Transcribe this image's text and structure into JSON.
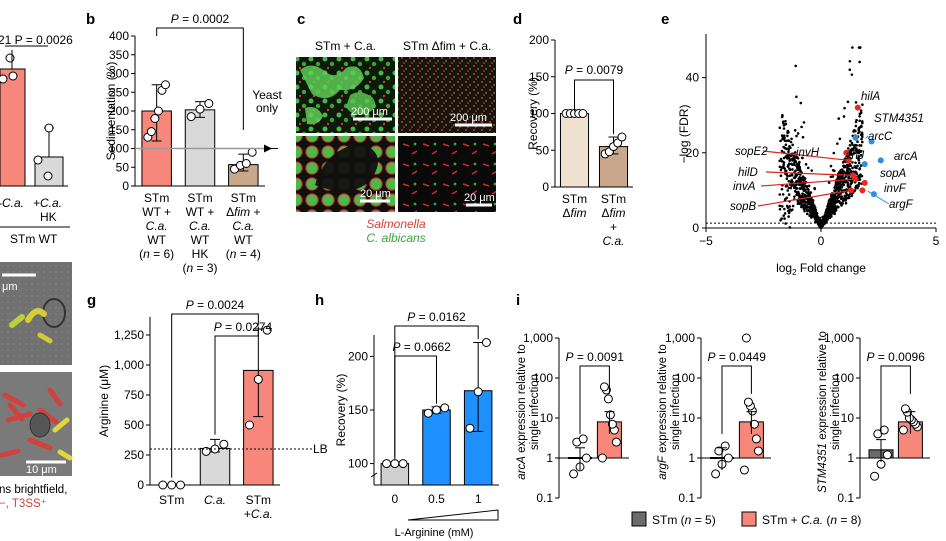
{
  "panels": [
    {
      "letter": "b"
    },
    {
      "letter": "c"
    },
    {
      "letter": "d"
    },
    {
      "letter": "e"
    },
    {
      "letter": "g"
    },
    {
      "letter": "h"
    },
    {
      "letter": "i"
    }
  ],
  "partial_a": {
    "p_text": "21 P = 0.0026",
    "bar_value": 230,
    "points": [
      215,
      240,
      275
    ],
    "hk_value": 58,
    "hk_points": [
      30,
      55,
      100
    ],
    "labels": [
      "-C.a.",
      "+C.a.",
      "HK",
      "STm WT"
    ]
  },
  "partial_f": {
    "scale_top": "μm",
    "scale_bottom": "10 μm",
    "caption_line1": "ns brightfield,",
    "caption_line2": "−, T3SS⁺"
  },
  "chart_data": [
    {
      "panel": "b",
      "type": "bar",
      "title": "P = 0.0002",
      "ylabel": "Sedimentation (%)",
      "ylim": [
        0,
        400
      ],
      "yticks": [
        "0",
        "50",
        "100",
        "150",
        "200",
        "250",
        "300",
        "350",
        "400"
      ],
      "categories": [
        {
          "lines": [
            "STm",
            "WT +",
            "C.a.",
            "WT",
            "(n = 6)"
          ]
        },
        {
          "lines": [
            "STm",
            "WT +",
            "C.a.",
            "WT",
            "HK",
            "(n = 3)"
          ]
        },
        {
          "lines": [
            "STm",
            "Δfim +",
            "C.a.",
            "WT",
            "(n = 4)"
          ]
        }
      ],
      "values": [
        200,
        203,
        57
      ],
      "errors": [
        [
          120,
          270
        ],
        [
          183,
          225
        ],
        [
          40,
          85
        ]
      ],
      "points": [
        [
          130,
          145,
          180,
          200,
          255,
          270
        ],
        [
          185,
          205,
          220
        ],
        [
          45,
          55,
          60,
          90
        ]
      ],
      "colors": [
        "#f6877a",
        "#d9d9d9",
        "#c9a78a"
      ],
      "annotation": "Yeast only",
      "reference": 100
    },
    {
      "panel": "c",
      "type": "image",
      "captions": [
        "STm + C.a.",
        "STm Δfim + C.a."
      ],
      "scalebars": [
        "200 μm",
        "200 μm",
        "20 μm",
        "20 μm"
      ],
      "legend": [
        "Salmonella",
        "C. albicans"
      ]
    },
    {
      "panel": "d",
      "type": "bar",
      "title": "P = 0.0079",
      "ylabel": "Recovery (%)",
      "ylim": [
        0,
        200
      ],
      "yticks": [
        "0",
        "50",
        "100",
        "150",
        "200"
      ],
      "categories": [
        {
          "lines": [
            "STm",
            "Δfim"
          ]
        },
        {
          "lines": [
            "STm",
            "Δfim",
            "+",
            "C.a."
          ]
        }
      ],
      "values": [
        100,
        55
      ],
      "errors": [
        [
          100,
          100
        ],
        [
          45,
          68
        ]
      ],
      "points": [
        [
          100,
          100,
          100,
          100,
          100
        ],
        [
          45,
          48,
          55,
          60,
          68
        ]
      ],
      "colors": [
        "#efe1cf",
        "#c9a78a"
      ]
    },
    {
      "panel": "e",
      "type": "scatter",
      "xlabel": "log2 Fold change",
      "ylabel": "−log (FDR)",
      "xlim": [
        -5,
        5
      ],
      "ylim": [
        0,
        50
      ],
      "xticks": [
        "−5",
        "0",
        "5"
      ],
      "yticks": [
        "0",
        "20",
        "40"
      ],
      "red_genes": [
        "hilA",
        "sopE2",
        "hilD",
        "invA",
        "sopB",
        "invH",
        "sopA",
        "invF"
      ],
      "blue_genes": [
        "STM4351",
        "arcC",
        "artJ",
        "arcA",
        "argF"
      ]
    },
    {
      "panel": "g",
      "type": "bar",
      "ylabel": "Arginine (μM)",
      "ylim": [
        0,
        1400
      ],
      "yticks": [
        "0",
        "250",
        "500",
        "750",
        "1,000",
        "1,250"
      ],
      "categories": [
        {
          "lines": [
            "STm"
          ]
        },
        {
          "lines": [
            "C.a."
          ]
        },
        {
          "lines": [
            "STm",
            "+C.a."
          ]
        }
      ],
      "values": [
        0,
        305,
        955
      ],
      "errors": [
        [
          0,
          0
        ],
        [
          275,
          380
        ],
        [
          570,
          1300
        ]
      ],
      "points": [
        [
          0,
          0,
          0
        ],
        [
          280,
          300,
          340
        ],
        [
          500,
          880,
          1290
        ]
      ],
      "colors": [
        "#6b6b6b",
        "#d9d9d9",
        "#f6877a"
      ],
      "p_values": [
        "P = 0.0024",
        "P = 0.0274"
      ],
      "reference_label": "LB",
      "reference": 300
    },
    {
      "panel": "h",
      "type": "bar",
      "ylabel": "Recovery (%)",
      "xlabel": "L-Arginine (mM)",
      "ylim": [
        80,
        220
      ],
      "yticks": [
        "100",
        "150",
        "200"
      ],
      "categories": [
        "0",
        "0.5",
        "1"
      ],
      "values": [
        100,
        150,
        168
      ],
      "errors": [
        [
          100,
          100
        ],
        [
          147,
          153
        ],
        [
          130,
          213
        ]
      ],
      "points": [
        [
          100,
          100,
          100
        ],
        [
          147,
          150,
          152
        ],
        [
          133,
          167,
          213
        ]
      ],
      "colors": [
        "#cfcfcf",
        "#1e90ff",
        "#1e90ff"
      ],
      "p_values": [
        "P = 0.0162",
        "P = 0.0662"
      ]
    },
    {
      "panel": "i",
      "type": "bar",
      "subplots": [
        {
          "ylabel": "arcA expression relative to single infection",
          "gene": "arcA",
          "p": "P = 0.0091",
          "yticks": [
            "0.1",
            "1",
            "10",
            "100",
            "1,000"
          ],
          "values": [
            1.0,
            8.0
          ],
          "points": [
            [
              0.4,
              0.6,
              1.0,
              2.5,
              3.0
            ],
            [
              1.0,
              2.5,
              5,
              7,
              12,
              30,
              50,
              60
            ]
          ]
        },
        {
          "ylabel": "argF expression relative to single infection",
          "gene": "argF",
          "p": "P = 0.0449",
          "yticks": [
            "0.1",
            "1",
            "10",
            "100",
            "1,000"
          ],
          "values": [
            1.0,
            8.0
          ],
          "points": [
            [
              0.4,
              0.7,
              1.0,
              1.5,
              2.0
            ],
            [
              0.5,
              1.5,
              3,
              7,
              15,
              20,
              25,
              1000
            ]
          ]
        },
        {
          "ylabel": "STM4351 expression relative to single infection",
          "gene": "STM4351",
          "p": "P = 0.0096",
          "yticks": [
            "0.1",
            "1",
            "10",
            "100",
            "1,000"
          ],
          "values": [
            1.6,
            8.0
          ],
          "points": [
            [
              0.35,
              0.7,
              1.2,
              4.0,
              5.0
            ],
            [
              5.0,
              6.0,
              7.0,
              8.0,
              9.0,
              10.0,
              14.0,
              17.0
            ]
          ]
        }
      ],
      "legend": [
        {
          "label": "STm (n = 5)",
          "color": "#6b6b6b"
        },
        {
          "label": "STm + C.a. (n = 8)",
          "color": "#f6877a"
        }
      ]
    }
  ]
}
